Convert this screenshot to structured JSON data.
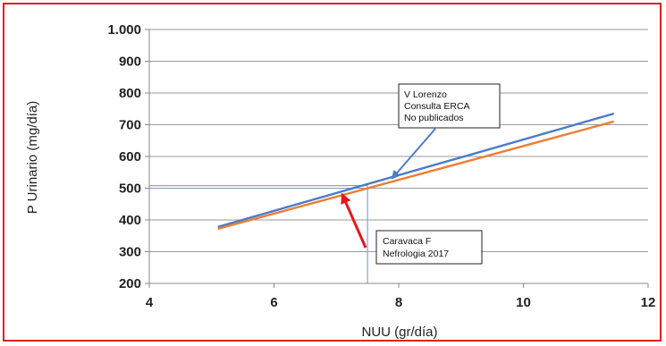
{
  "chart_data": {
    "type": "line",
    "title": "",
    "xlabel": "NUU (gr/día)",
    "ylabel": "P Urinario (mg/día)",
    "xlim": [
      4,
      12
    ],
    "ylim": [
      200,
      1000
    ],
    "x_ticks": [
      4,
      6,
      8,
      10,
      12
    ],
    "x_tick_labels": [
      "4",
      "6",
      "8",
      "10",
      "12"
    ],
    "y_ticks": [
      200,
      300,
      400,
      500,
      600,
      700,
      800,
      900,
      1000
    ],
    "y_tick_labels": [
      "200",
      "300",
      "400",
      "500",
      "600",
      "700",
      "800",
      "900",
      "1.000"
    ],
    "grid": "horizontal",
    "legend": "none",
    "series": [
      {
        "color": "#4a7cc9",
        "x": [
          5.1,
          11.45
        ],
        "y": [
          378,
          735
        ]
      },
      {
        "color": "#ee7d31",
        "x": [
          5.1,
          11.45
        ],
        "y": [
          372,
          710
        ]
      }
    ],
    "reference_lines": {
      "color": "#7fa5dc",
      "horizontal": {
        "y": 508,
        "x_from": 4,
        "x_to": 7.5
      },
      "vertical": {
        "x": 7.5,
        "y_from": 200,
        "y_to": 508
      }
    },
    "annotations": [
      {
        "id": "lorenzo",
        "lines": [
          "V Lorenzo",
          "Consulta ERCA",
          "No publicados"
        ],
        "arrow_color": "#4a7cc9",
        "arrow_target": {
          "x": 7.9,
          "y": 532
        }
      },
      {
        "id": "caravaca",
        "lines": [
          "Caravaca F",
          "Nefrologia 2017"
        ],
        "arrow_color": "#e8161b",
        "arrow_target": {
          "x": 7.1,
          "y": 478
        }
      }
    ]
  }
}
